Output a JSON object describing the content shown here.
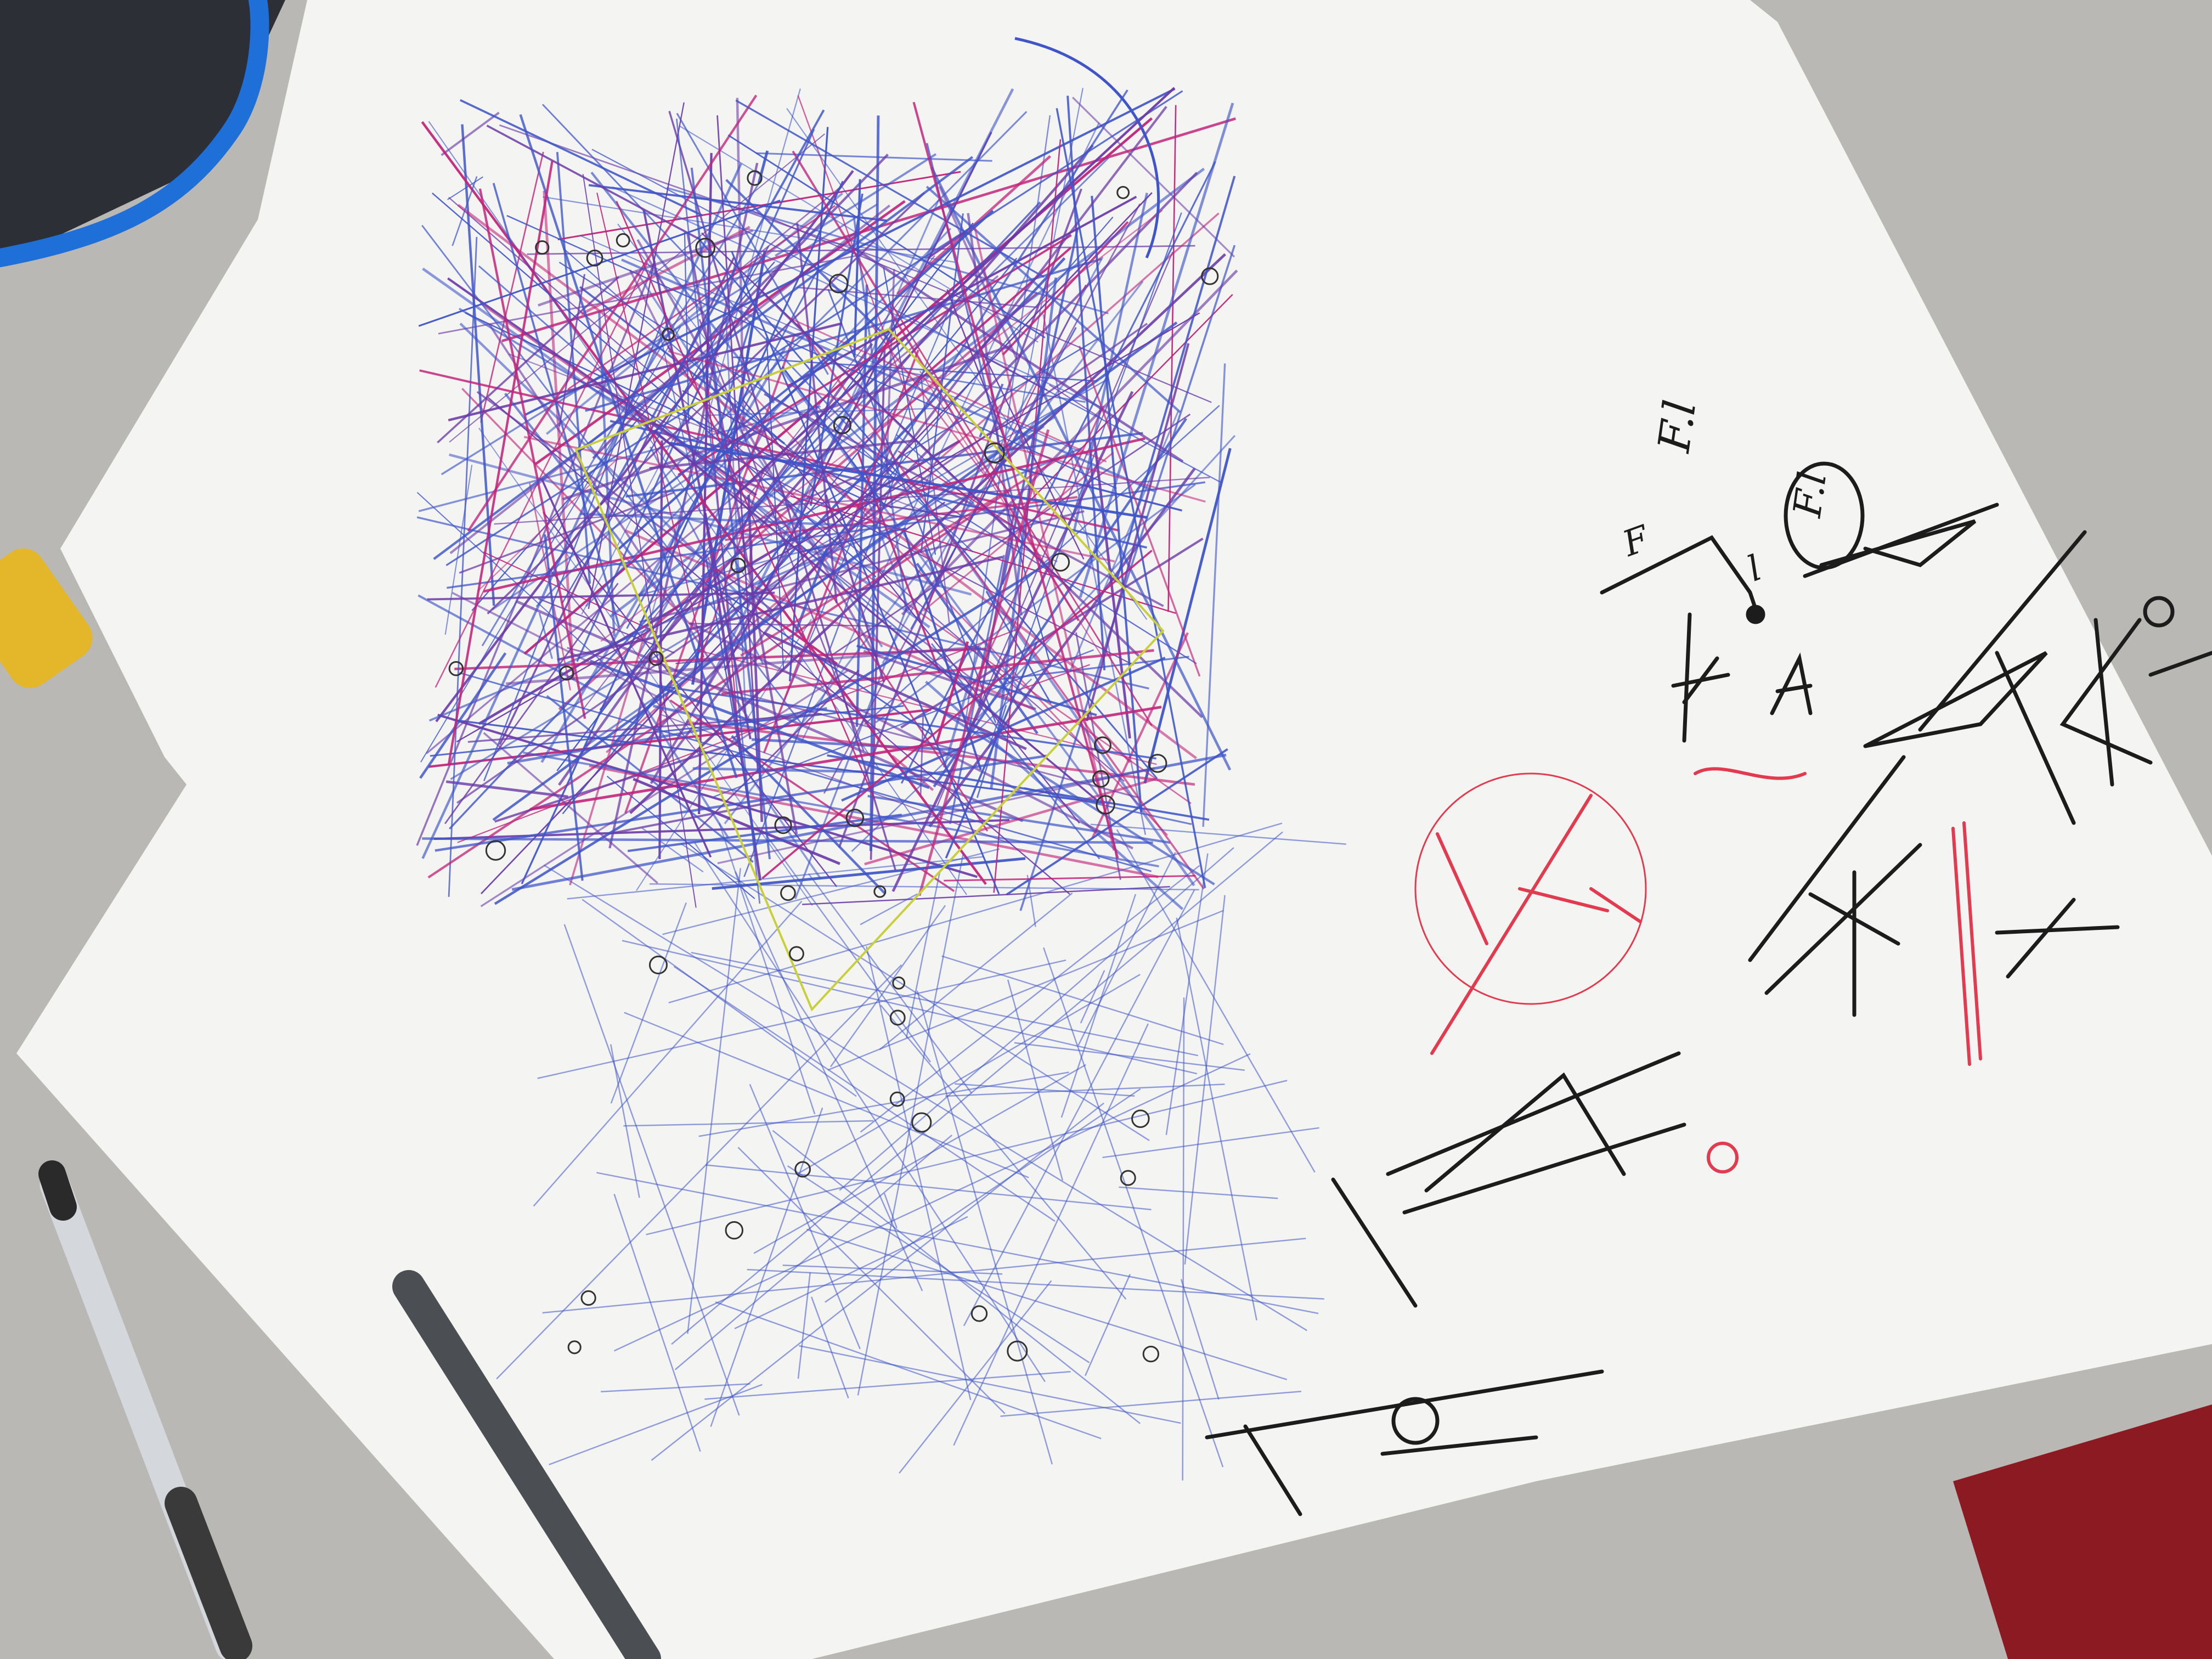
{
  "scene": {
    "handwritten_labels": {
      "fl_top": "F.l",
      "fl_circle": "F.l",
      "f": "F",
      "l": "l"
    },
    "colors": {
      "desk": "#b9b8b5",
      "paper": "#f4f4f2",
      "blue_ink": "#3f55c8",
      "purple_ink": "#6a3aa8",
      "magenta_ink": "#c2247a",
      "yellow_ink": "#c9cf3a",
      "black_ink": "#1c1c1c",
      "red_ink": "#e23a4e",
      "cable_blue": "#1f6fd8",
      "tape_yellow": "#e4b62a",
      "pencil_grey": "#4b4f53",
      "red_surface": "#8b1a22"
    },
    "objects": [
      "desk-surface",
      "paper-sheet",
      "blue-cable",
      "yellow-tape-roll",
      "grey-pencil",
      "clear-ballpoint-pen",
      "red-folder-corner"
    ]
  }
}
